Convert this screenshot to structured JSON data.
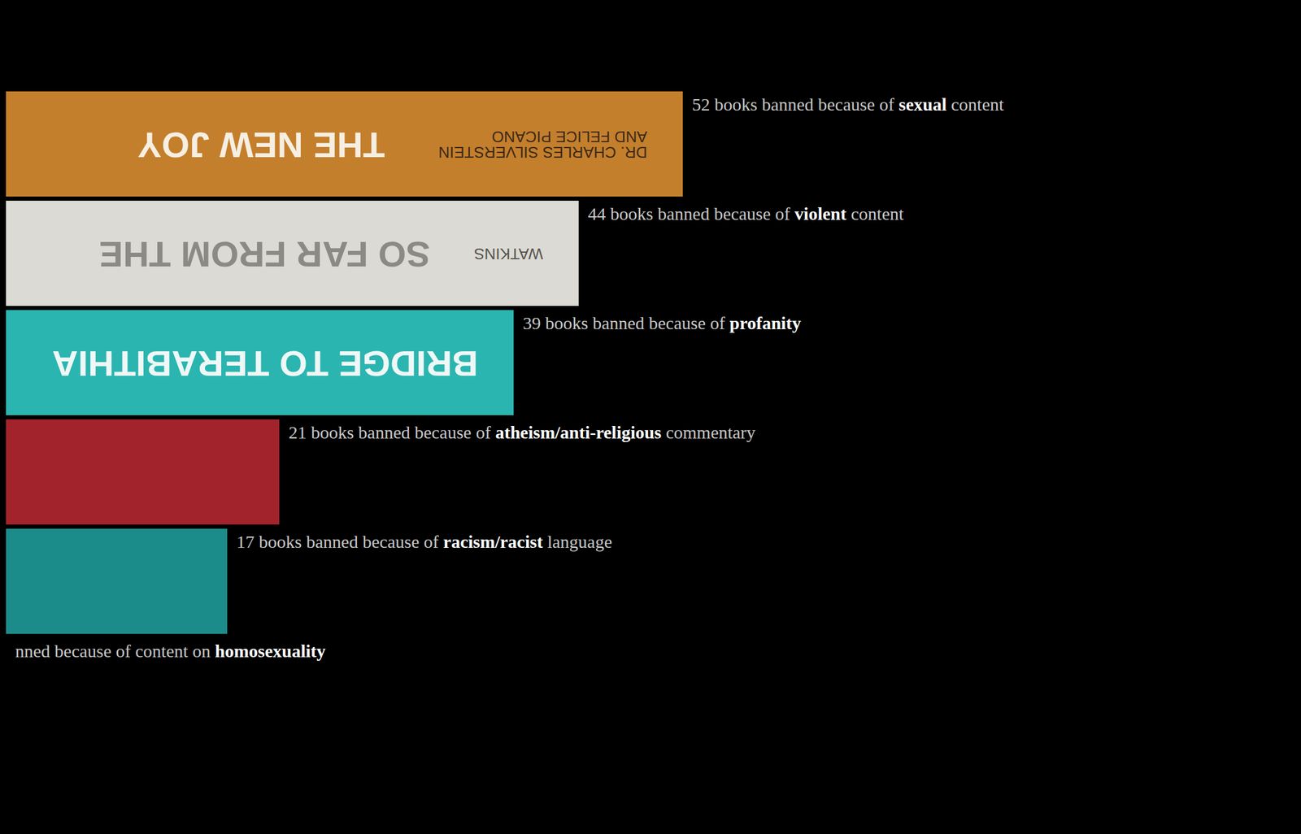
{
  "chart_data": {
    "type": "bar",
    "orientation": "horizontal",
    "values": [
      52,
      44,
      39,
      21,
      17,
      null
    ],
    "value_labels": [
      "52 books banned because of sexual content",
      "44 books banned because of violent content",
      "39 books banned because of profanity",
      "21 books banned because of atheism/anti-religious commentary",
      "17 books banned because of racism/racist language",
      "nned because of content on homosexuality"
    ],
    "highlights": [
      "sexual",
      "violent",
      "profanity",
      "atheism/anti-religious",
      "racism/racist",
      "homosexuality"
    ],
    "colors": [
      "#c47f2c",
      "#dcdad4",
      "#2bb5b0",
      "#a3232c",
      "#1c8c8a",
      null
    ],
    "spine_titles": [
      "THE NEW JOY",
      "SO FAR FROM THE",
      "BRIDGE TO TERABITHIA",
      null,
      null,
      null
    ],
    "spine_authors": [
      "DR. CHARLES SILVERSTEIN\nAND FELICE PICANO",
      "WATKINS",
      null,
      null,
      null,
      null
    ],
    "xlim": [
      0,
      52
    ],
    "data_labels": true,
    "tick_labels": false,
    "grid": false
  }
}
